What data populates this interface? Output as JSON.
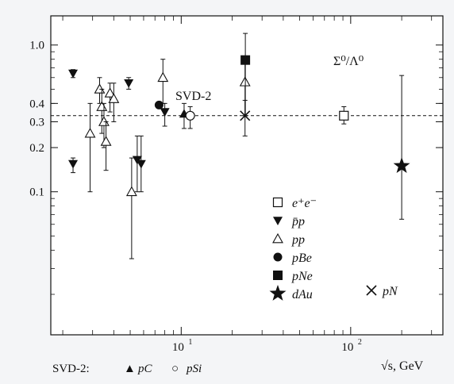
{
  "colors": {
    "background": "#f4f5f7",
    "ink": "#111111",
    "plot_background": "#ffffff"
  },
  "chart_data": {
    "type": "scatter",
    "title": "Σ⁰/Λ⁰",
    "xlabel": "√s, GeV",
    "ylabel": "",
    "x_scale": "log",
    "y_scale": "log",
    "xlim": [
      1.7,
      350
    ],
    "ylim": [
      0.0106,
      1.58
    ],
    "y_ticks": [
      "1.0",
      "0.4",
      "0.3",
      "0.2",
      "0.1"
    ],
    "y_tick_values": [
      1.0,
      0.4,
      0.3,
      0.2,
      0.1
    ],
    "x_ticks": [
      {
        "base": "10",
        "exp": "1",
        "value": 10
      },
      {
        "base": "10",
        "exp": "2",
        "value": 100
      }
    ],
    "reference_line": {
      "y": 0.33,
      "style": "dashed"
    },
    "annotations": [
      {
        "text": "SVD-2",
        "near_x": 10
      }
    ],
    "footnote": {
      "prefix": "SVD-2:",
      "items": [
        {
          "symbol": "▲",
          "label": "pC"
        },
        {
          "symbol": "○",
          "label": "pSi"
        }
      ]
    },
    "legend": {
      "placement": "lower-right",
      "entries": [
        {
          "symbol": "□",
          "label": "e⁺e⁻"
        },
        {
          "symbol": "▼",
          "label": "p̄p"
        },
        {
          "symbol": "△",
          "label": "pp"
        },
        {
          "symbol": "●",
          "label": "pBe"
        },
        {
          "symbol": "■",
          "label": "pNe"
        },
        {
          "symbol": "★",
          "label": "dAu"
        },
        {
          "symbol": "✕",
          "label": "pN"
        }
      ]
    },
    "series": [
      {
        "name": "e⁺e⁻",
        "marker": "square-open",
        "points": [
          {
            "x": 91.2,
            "y": 0.33,
            "lo": 0.29,
            "hi": 0.38
          }
        ]
      },
      {
        "name": "p̄p",
        "marker": "triangle-down",
        "points": [
          {
            "x": 2.3,
            "y": 0.64,
            "lo": 0.6,
            "hi": 0.68
          },
          {
            "x": 2.3,
            "y": 0.155,
            "lo": 0.135,
            "hi": 0.17
          },
          {
            "x": 4.9,
            "y": 0.55,
            "lo": 0.5,
            "hi": 0.6
          },
          {
            "x": 5.5,
            "y": 0.165,
            "lo": 0.1,
            "hi": 0.24
          },
          {
            "x": 5.8,
            "y": 0.155,
            "lo": 0.1,
            "hi": 0.24
          },
          {
            "x": 8.0,
            "y": 0.35,
            "lo": 0.28,
            "hi": 0.4
          }
        ]
      },
      {
        "name": "pp",
        "marker": "triangle-up-open",
        "points": [
          {
            "x": 2.9,
            "y": 0.25,
            "lo": 0.1,
            "hi": 0.4
          },
          {
            "x": 3.3,
            "y": 0.5,
            "lo": 0.4,
            "hi": 0.6
          },
          {
            "x": 3.4,
            "y": 0.38,
            "lo": 0.25,
            "hi": 0.5
          },
          {
            "x": 3.5,
            "y": 0.3,
            "lo": 0.2,
            "hi": 0.4
          },
          {
            "x": 3.6,
            "y": 0.22,
            "lo": 0.14,
            "hi": 0.3
          },
          {
            "x": 3.8,
            "y": 0.47,
            "lo": 0.35,
            "hi": 0.55
          },
          {
            "x": 4.0,
            "y": 0.43,
            "lo": 0.3,
            "hi": 0.55
          },
          {
            "x": 5.1,
            "y": 0.1,
            "lo": 0.035,
            "hi": 0.17
          },
          {
            "x": 7.8,
            "y": 0.6,
            "lo": 0.4,
            "hi": 0.8
          },
          {
            "x": 23.8,
            "y": 0.56,
            "lo": 0.33,
            "hi": 0.75
          }
        ]
      },
      {
        "name": "pBe",
        "marker": "circle",
        "points": [
          {
            "x": 7.4,
            "y": 0.39
          }
        ]
      },
      {
        "name": "pNe",
        "marker": "square",
        "points": [
          {
            "x": 23.9,
            "y": 0.79,
            "lo": 0.33,
            "hi": 1.2
          }
        ]
      },
      {
        "name": "dAu",
        "marker": "star",
        "points": [
          {
            "x": 200,
            "y": 0.15,
            "lo": 0.065,
            "hi": 0.62
          }
        ]
      },
      {
        "name": "pN",
        "marker": "cross",
        "points": [
          {
            "x": 23.8,
            "y": 0.33,
            "lo": 0.24,
            "hi": 0.42
          }
        ]
      },
      {
        "name": "pC",
        "marker": "triangle-up",
        "points": [
          {
            "x": 10.4,
            "y": 0.34,
            "lo": 0.27,
            "hi": 0.4
          }
        ]
      },
      {
        "name": "pSi",
        "marker": "circle-open",
        "points": [
          {
            "x": 11.3,
            "y": 0.33,
            "lo": 0.27,
            "hi": 0.38
          }
        ]
      }
    ]
  }
}
